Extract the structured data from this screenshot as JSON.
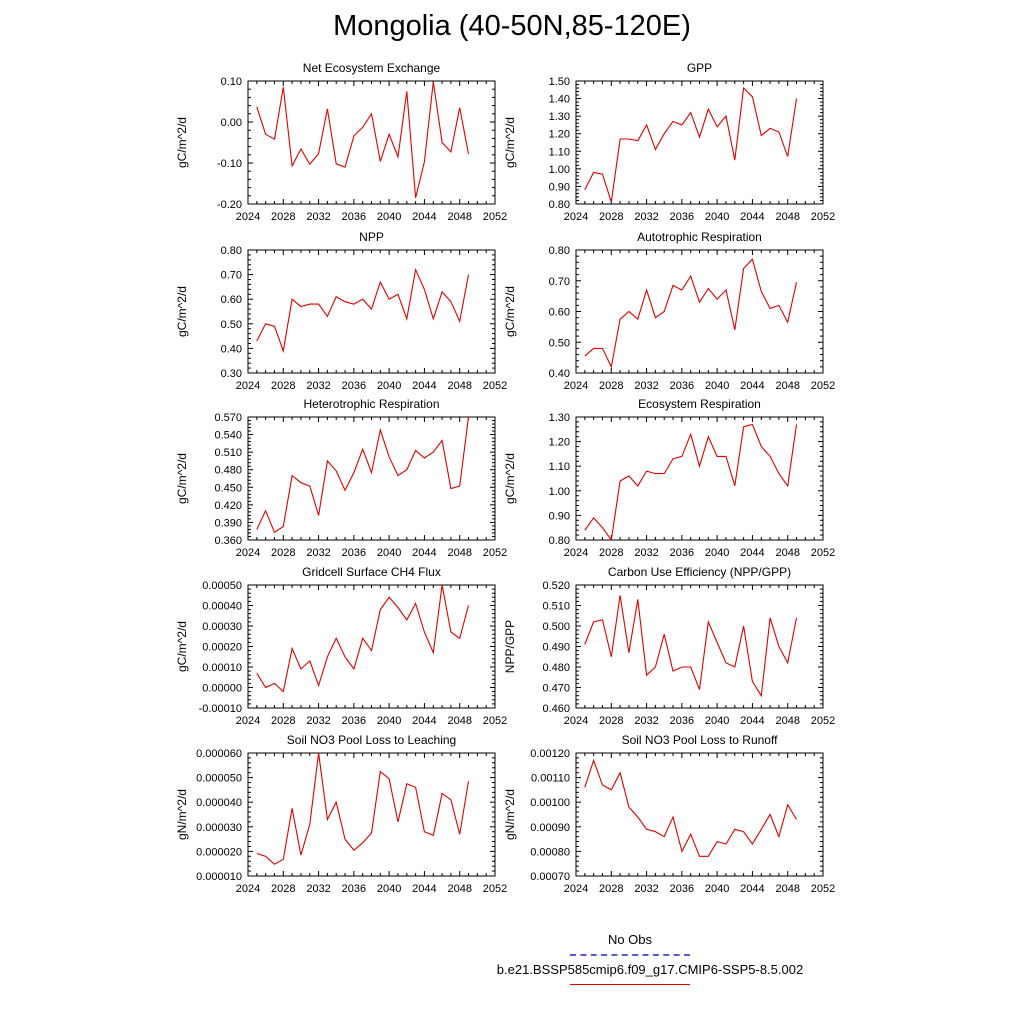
{
  "figure_title": "Mongolia (40-50N,85-120E)",
  "legend": {
    "obs_label": "No Obs",
    "run_label": "b.e21.BSSP585cmip6.f09_g17.CMIP6-SSP5-8.5.002",
    "obs_color": "#5a5ae0",
    "run_color": "#e00000"
  },
  "chart_data": [
    {
      "type": "line",
      "title": "Net Ecosystem Exchange",
      "ylabel": "gC/m^2/d",
      "xlim": [
        2024,
        2052
      ],
      "ylim": [
        -0.2,
        0.1
      ],
      "xticks": [
        "2024",
        "2028",
        "2032",
        "2036",
        "2040",
        "2044",
        "2048",
        "2052"
      ],
      "yticks": [
        "0.10",
        "0.00",
        "-0.10",
        "-0.20"
      ],
      "series": [
        {
          "color": "#e00000",
          "x": [
            2025,
            2026,
            2027,
            2028,
            2029,
            2030,
            2031,
            2032,
            2033,
            2034,
            2035,
            2036,
            2037,
            2038,
            2039,
            2040,
            2041,
            2042,
            2043,
            2044,
            2045,
            2046,
            2047,
            2048,
            2049
          ],
          "values": [
            0.037,
            -0.03,
            -0.042,
            0.085,
            -0.107,
            -0.066,
            -0.103,
            -0.077,
            0.032,
            -0.102,
            -0.11,
            -0.034,
            -0.013,
            0.02,
            -0.096,
            -0.03,
            -0.085,
            0.075,
            -0.185,
            -0.097,
            0.098,
            -0.05,
            -0.073,
            0.035,
            -0.078
          ]
        }
      ]
    },
    {
      "type": "line",
      "title": "GPP",
      "ylabel": "gC/m^2/d",
      "xlim": [
        2024,
        2052
      ],
      "ylim": [
        0.8,
        1.5
      ],
      "xticks": [
        "2024",
        "2028",
        "2032",
        "2036",
        "2040",
        "2044",
        "2048",
        "2052"
      ],
      "yticks": [
        "1.50",
        "1.40",
        "1.30",
        "1.20",
        "1.10",
        "1.00",
        "0.90",
        "0.80"
      ],
      "series": [
        {
          "color": "#e00000",
          "x": [
            2025,
            2026,
            2027,
            2028,
            2029,
            2030,
            2031,
            2032,
            2033,
            2034,
            2035,
            2036,
            2037,
            2038,
            2039,
            2040,
            2041,
            2042,
            2043,
            2044,
            2045,
            2046,
            2047,
            2048,
            2049
          ],
          "values": [
            0.88,
            0.98,
            0.97,
            0.81,
            1.17,
            1.17,
            1.16,
            1.25,
            1.11,
            1.2,
            1.27,
            1.25,
            1.32,
            1.18,
            1.34,
            1.24,
            1.3,
            1.05,
            1.46,
            1.41,
            1.19,
            1.23,
            1.21,
            1.07,
            1.4
          ]
        }
      ]
    },
    {
      "type": "line",
      "title": "NPP",
      "ylabel": "gC/m^2/d",
      "xlim": [
        2024,
        2052
      ],
      "ylim": [
        0.3,
        0.8
      ],
      "xticks": [
        "2024",
        "2028",
        "2032",
        "2036",
        "2040",
        "2044",
        "2048",
        "2052"
      ],
      "yticks": [
        "0.80",
        "0.70",
        "0.60",
        "0.50",
        "0.40",
        "0.30"
      ],
      "series": [
        {
          "color": "#e00000",
          "x": [
            2025,
            2026,
            2027,
            2028,
            2029,
            2030,
            2031,
            2032,
            2033,
            2034,
            2035,
            2036,
            2037,
            2038,
            2039,
            2040,
            2041,
            2042,
            2043,
            2044,
            2045,
            2046,
            2047,
            2048,
            2049
          ],
          "values": [
            0.43,
            0.5,
            0.49,
            0.39,
            0.6,
            0.57,
            0.58,
            0.58,
            0.53,
            0.61,
            0.59,
            0.58,
            0.6,
            0.56,
            0.67,
            0.6,
            0.62,
            0.52,
            0.72,
            0.64,
            0.52,
            0.63,
            0.59,
            0.51,
            0.7
          ]
        }
      ]
    },
    {
      "type": "line",
      "title": "Autotrophic Respiration",
      "ylabel": "gC/m^2/d",
      "xlim": [
        2024,
        2052
      ],
      "ylim": [
        0.4,
        0.8
      ],
      "xticks": [
        "2024",
        "2028",
        "2032",
        "2036",
        "2040",
        "2044",
        "2048",
        "2052"
      ],
      "yticks": [
        "0.80",
        "0.70",
        "0.60",
        "0.50",
        "0.40"
      ],
      "series": [
        {
          "color": "#e00000",
          "x": [
            2025,
            2026,
            2027,
            2028,
            2029,
            2030,
            2031,
            2032,
            2033,
            2034,
            2035,
            2036,
            2037,
            2038,
            2039,
            2040,
            2041,
            2042,
            2043,
            2044,
            2045,
            2046,
            2047,
            2048,
            2049
          ],
          "values": [
            0.455,
            0.48,
            0.48,
            0.42,
            0.575,
            0.6,
            0.575,
            0.67,
            0.58,
            0.6,
            0.685,
            0.67,
            0.715,
            0.63,
            0.675,
            0.64,
            0.67,
            0.54,
            0.74,
            0.77,
            0.665,
            0.61,
            0.62,
            0.565,
            0.695
          ]
        }
      ]
    },
    {
      "type": "line",
      "title": "Heterotrophic Respiration",
      "ylabel": "gC/m^2/d",
      "xlim": [
        2024,
        2052
      ],
      "ylim": [
        0.36,
        0.57
      ],
      "xticks": [
        "2024",
        "2028",
        "2032",
        "2036",
        "2040",
        "2044",
        "2048",
        "2052"
      ],
      "yticks": [
        "0.570",
        "0.540",
        "0.510",
        "0.480",
        "0.450",
        "0.420",
        "0.390",
        "0.360"
      ],
      "series": [
        {
          "color": "#e00000",
          "x": [
            2025,
            2026,
            2027,
            2028,
            2029,
            2030,
            2031,
            2032,
            2033,
            2034,
            2035,
            2036,
            2037,
            2038,
            2039,
            2040,
            2041,
            2042,
            2043,
            2044,
            2045,
            2046,
            2047,
            2048,
            2049
          ],
          "values": [
            0.378,
            0.41,
            0.373,
            0.383,
            0.47,
            0.458,
            0.452,
            0.402,
            0.495,
            0.478,
            0.445,
            0.475,
            0.515,
            0.475,
            0.548,
            0.502,
            0.47,
            0.48,
            0.513,
            0.5,
            0.51,
            0.53,
            0.448,
            0.452,
            0.57
          ]
        }
      ]
    },
    {
      "type": "line",
      "title": "Ecosystem Respiration",
      "ylabel": "gC/m^2/d",
      "xlim": [
        2024,
        2052
      ],
      "ylim": [
        0.8,
        1.3
      ],
      "xticks": [
        "2024",
        "2028",
        "2032",
        "2036",
        "2040",
        "2044",
        "2048",
        "2052"
      ],
      "yticks": [
        "1.30",
        "1.20",
        "1.10",
        "1.00",
        "0.90",
        "0.80"
      ],
      "series": [
        {
          "color": "#e00000",
          "x": [
            2025,
            2026,
            2027,
            2028,
            2029,
            2030,
            2031,
            2032,
            2033,
            2034,
            2035,
            2036,
            2037,
            2038,
            2039,
            2040,
            2041,
            2042,
            2043,
            2044,
            2045,
            2046,
            2047,
            2048,
            2049
          ],
          "values": [
            0.84,
            0.89,
            0.85,
            0.8,
            1.04,
            1.06,
            1.02,
            1.08,
            1.07,
            1.07,
            1.13,
            1.14,
            1.23,
            1.1,
            1.22,
            1.14,
            1.14,
            1.02,
            1.26,
            1.27,
            1.18,
            1.14,
            1.07,
            1.02,
            1.27
          ]
        }
      ]
    },
    {
      "type": "line",
      "title": "Gridcell Surface CH4 Flux",
      "ylabel": "gC/m^2/d",
      "xlim": [
        2024,
        2052
      ],
      "ylim": [
        -0.0001,
        0.0005
      ],
      "xticks": [
        "2024",
        "2028",
        "2032",
        "2036",
        "2040",
        "2044",
        "2048",
        "2052"
      ],
      "yticks": [
        "0.00050",
        "0.00040",
        "0.00030",
        "0.00020",
        "0.00010",
        "0.00000",
        "-0.00010"
      ],
      "series": [
        {
          "color": "#e00000",
          "x": [
            2025,
            2026,
            2027,
            2028,
            2029,
            2030,
            2031,
            2032,
            2033,
            2034,
            2035,
            2036,
            2037,
            2038,
            2039,
            2040,
            2041,
            2042,
            2043,
            2044,
            2045,
            2046,
            2047,
            2048,
            2049
          ],
          "values": [
            7e-05,
            0.0,
            2e-05,
            -2e-05,
            0.00019,
            9e-05,
            0.00013,
            1e-05,
            0.00015,
            0.00024,
            0.00015,
            9e-05,
            0.00024,
            0.00018,
            0.00038,
            0.00044,
            0.00039,
            0.00033,
            0.00041,
            0.00027,
            0.00017,
            0.0005,
            0.00027,
            0.00024,
            0.0004
          ]
        }
      ]
    },
    {
      "type": "line",
      "title": "Carbon Use Efficiency (NPP/GPP)",
      "ylabel": "NPP/GPP",
      "xlim": [
        2024,
        2052
      ],
      "ylim": [
        0.46,
        0.52
      ],
      "xticks": [
        "2024",
        "2028",
        "2032",
        "2036",
        "2040",
        "2044",
        "2048",
        "2052"
      ],
      "yticks": [
        "0.520",
        "0.510",
        "0.500",
        "0.490",
        "0.480",
        "0.470",
        "0.460"
      ],
      "series": [
        {
          "color": "#e00000",
          "x": [
            2025,
            2026,
            2027,
            2028,
            2029,
            2030,
            2031,
            2032,
            2033,
            2034,
            2035,
            2036,
            2037,
            2038,
            2039,
            2040,
            2041,
            2042,
            2043,
            2044,
            2045,
            2046,
            2047,
            2048,
            2049
          ],
          "values": [
            0.491,
            0.502,
            0.503,
            0.485,
            0.515,
            0.487,
            0.513,
            0.476,
            0.48,
            0.496,
            0.478,
            0.48,
            0.48,
            0.469,
            0.502,
            0.492,
            0.482,
            0.48,
            0.5,
            0.473,
            0.466,
            0.504,
            0.49,
            0.482,
            0.504
          ]
        }
      ]
    },
    {
      "type": "line",
      "title": "Soil NO3 Pool Loss to Leaching",
      "ylabel": "gN/m^2/d",
      "xlim": [
        2024,
        2052
      ],
      "ylim": [
        1e-05,
        6e-05
      ],
      "xticks": [
        "2024",
        "2028",
        "2032",
        "2036",
        "2040",
        "2044",
        "2048",
        "2052"
      ],
      "yticks": [
        "0.000060",
        "0.000050",
        "0.000040",
        "0.000030",
        "0.000020",
        "0.000010"
      ],
      "series": [
        {
          "color": "#e00000",
          "x": [
            2025,
            2026,
            2027,
            2028,
            2029,
            2030,
            2031,
            2032,
            2033,
            2034,
            2035,
            2036,
            2037,
            2038,
            2039,
            2040,
            2041,
            2042,
            2043,
            2044,
            2045,
            2046,
            2047,
            2048,
            2049
          ],
          "values": [
            1.92e-05,
            1.8e-05,
            1.48e-05,
            1.68e-05,
            3.75e-05,
            1.85e-05,
            3.1e-05,
            6e-05,
            3.3e-05,
            4e-05,
            2.5e-05,
            2.05e-05,
            2.35e-05,
            2.75e-05,
            5.25e-05,
            4.95e-05,
            3.2e-05,
            4.75e-05,
            4.6e-05,
            2.8e-05,
            2.65e-05,
            4.35e-05,
            4.1e-05,
            2.7e-05,
            4.85e-05
          ]
        }
      ]
    },
    {
      "type": "line",
      "title": "Soil NO3 Pool Loss to Runoff",
      "ylabel": "gN/m^2/d",
      "xlim": [
        2024,
        2052
      ],
      "ylim": [
        0.0007,
        0.0012
      ],
      "xticks": [
        "2024",
        "2028",
        "2032",
        "2036",
        "2040",
        "2044",
        "2048",
        "2052"
      ],
      "yticks": [
        "0.00120",
        "0.00110",
        "0.00100",
        "0.00090",
        "0.00080",
        "0.00070"
      ],
      "series": [
        {
          "color": "#e00000",
          "x": [
            2025,
            2026,
            2027,
            2028,
            2029,
            2030,
            2031,
            2032,
            2033,
            2034,
            2035,
            2036,
            2037,
            2038,
            2039,
            2040,
            2041,
            2042,
            2043,
            2044,
            2045,
            2046,
            2047,
            2048,
            2049
          ],
          "values": [
            0.00106,
            0.00117,
            0.00107,
            0.00105,
            0.00112,
            0.00098,
            0.00094,
            0.00089,
            0.00088,
            0.00086,
            0.00094,
            0.0008,
            0.00087,
            0.00078,
            0.00078,
            0.00084,
            0.00083,
            0.00089,
            0.00088,
            0.00083,
            0.00089,
            0.00095,
            0.00086,
            0.00099,
            0.00093
          ]
        }
      ]
    }
  ]
}
